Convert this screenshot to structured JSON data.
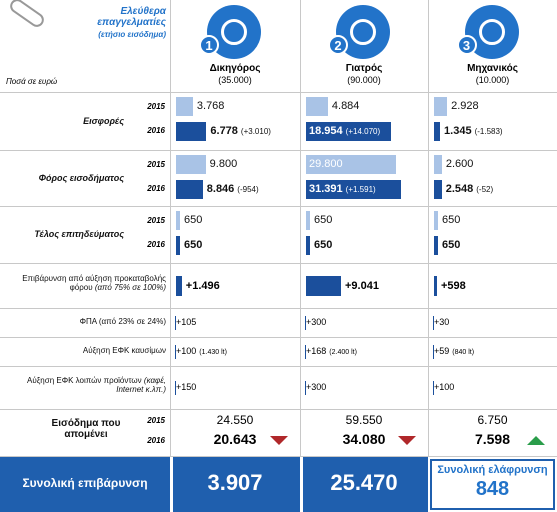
{
  "header": {
    "title": "Ελεύθερα επαγγελματίες",
    "subtitle": "(ετήσιο εισόδημα)",
    "unit_note": "Ποσά σε ευρώ"
  },
  "professions": [
    {
      "number": "1",
      "name": "Δικηγόρος",
      "income": "(35.000)"
    },
    {
      "number": "2",
      "name": "Γιατρός",
      "income": "(90.000)"
    },
    {
      "number": "3",
      "name": "Μηχανικός",
      "income": "(10.000)"
    }
  ],
  "years": [
    "2015",
    "2016"
  ],
  "bar_rows": [
    {
      "label": "Εισφορές",
      "cells": [
        [
          {
            "value": 3768,
            "label": "3.768"
          },
          {
            "value": 6778,
            "label": "6.778",
            "change": "(+3.010)"
          }
        ],
        [
          {
            "value": 4884,
            "label": "4.884"
          },
          {
            "value": 18954,
            "label": "18.954",
            "change": "(+14.070)"
          }
        ],
        [
          {
            "value": 2928,
            "label": "2.928"
          },
          {
            "value": 1345,
            "label": "1.345",
            "change": "(-1.583)"
          }
        ]
      ]
    },
    {
      "label": "Φόρος εισοδήματος",
      "cells": [
        [
          {
            "value": 9800,
            "label": "9.800"
          },
          {
            "value": 8846,
            "label": "8.846",
            "change": "(-954)"
          }
        ],
        [
          {
            "value": 29800,
            "label": "29.800"
          },
          {
            "value": 31391,
            "label": "31.391",
            "change": "(+1.591)"
          }
        ],
        [
          {
            "value": 2600,
            "label": "2.600"
          },
          {
            "value": 2548,
            "label": "2.548",
            "change": "(-52)"
          }
        ]
      ]
    },
    {
      "label": "Τέλος επιτηδεύματος",
      "cells": [
        [
          {
            "value": 650,
            "label": "650"
          },
          {
            "value": 650,
            "label": "650"
          }
        ],
        [
          {
            "value": 650,
            "label": "650"
          },
          {
            "value": 650,
            "label": "650"
          }
        ],
        [
          {
            "value": 650,
            "label": "650"
          },
          {
            "value": 650,
            "label": "650"
          }
        ]
      ]
    }
  ],
  "single_rows": [
    {
      "label": "Επιβάρυνση από αύξηση προκαταβολής φόρου",
      "label_note": "(από 75% σε 100%)",
      "cells": [
        {
          "value": 1496,
          "label": "+1.496"
        },
        {
          "value": 9041,
          "label": "+9.041"
        },
        {
          "value": 598,
          "label": "+598"
        }
      ]
    },
    {
      "label": "ΦΠΑ (από 23% σε 24%)",
      "cells": [
        {
          "label": "+105"
        },
        {
          "label": "+300"
        },
        {
          "label": "+30"
        }
      ]
    },
    {
      "label": "Αύξηση ΕΦΚ καυσίμων",
      "cells": [
        {
          "label": "+100",
          "note": "(1.430 lt)"
        },
        {
          "label": "+168",
          "note": "(2.400 lt)"
        },
        {
          "label": "+59",
          "note": "(840 lt)"
        }
      ]
    },
    {
      "label": "Αύξηση ΕΦΚ λοιπών προϊόντων",
      "label_note": "(καφέ, Internet κ.λπ.)",
      "cells": [
        {
          "label": "+150"
        },
        {
          "label": "+300"
        },
        {
          "label": "+100"
        }
      ]
    }
  ],
  "remaining": {
    "label": "Εισόδημα που απομένει",
    "cells": [
      [
        "24.550",
        "20.643"
      ],
      [
        "59.550",
        "34.080"
      ],
      [
        "6.750",
        "7.598"
      ]
    ]
  },
  "footer": {
    "total_label": "Συνολική επιβάρυνση",
    "totals": [
      "3.907",
      "25.470"
    ],
    "relief_label": "Συνολική ελάφρυνση",
    "relief": "848"
  }
}
